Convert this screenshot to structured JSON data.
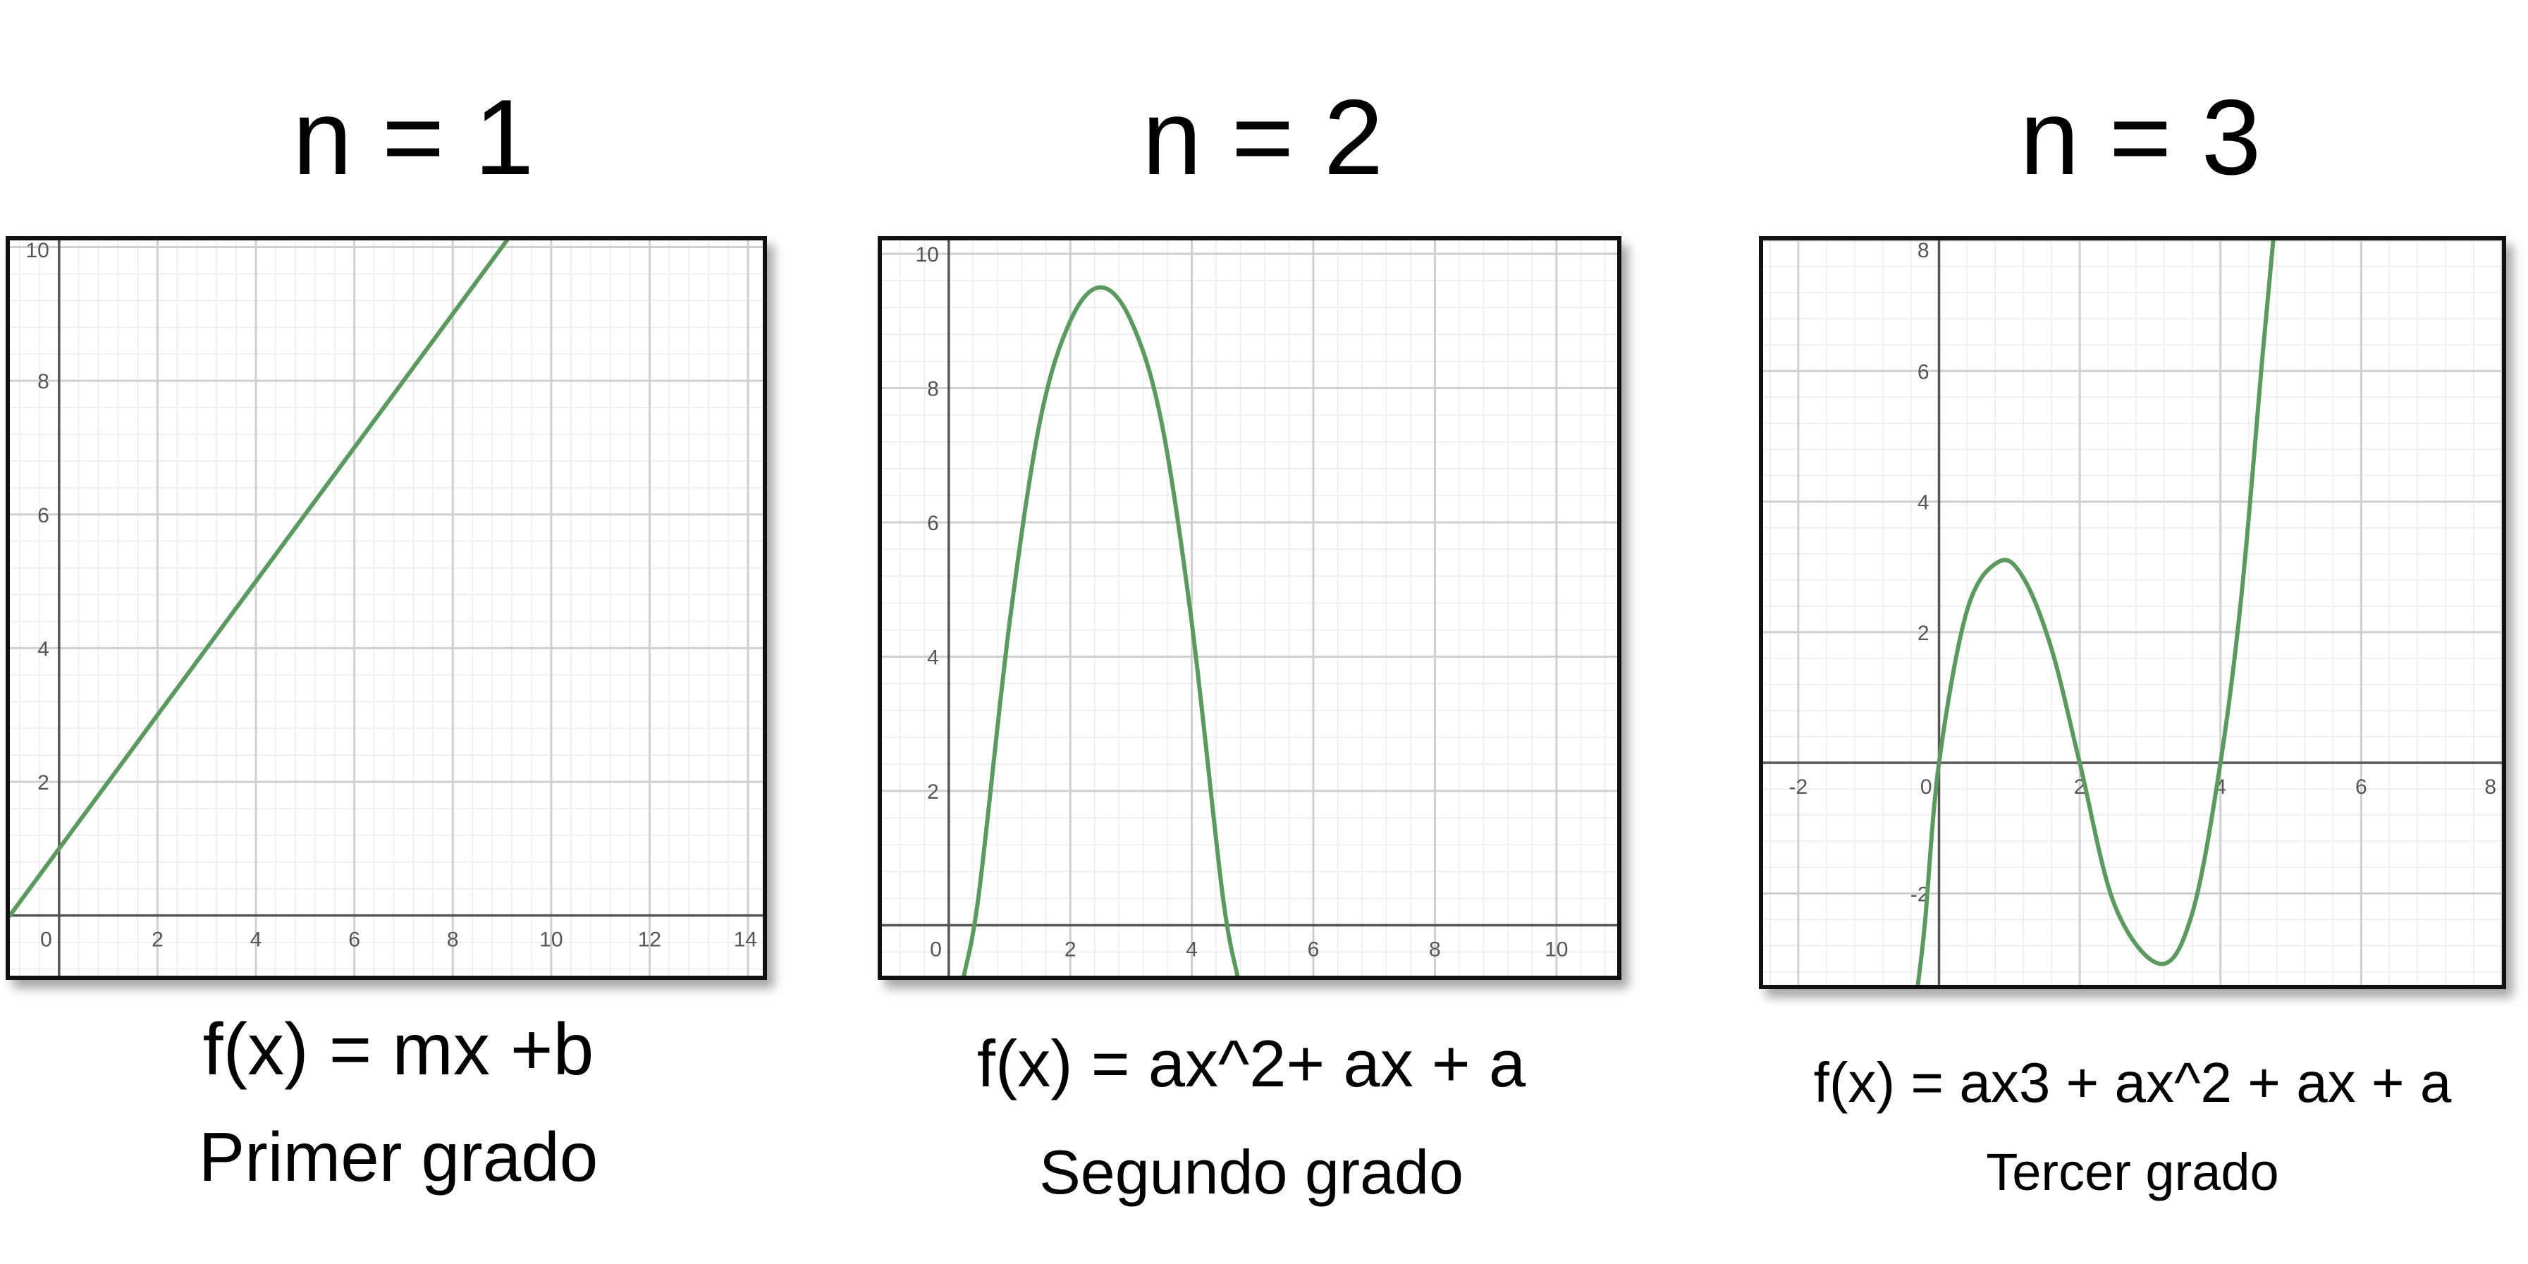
{
  "panels": [
    {
      "title": "n = 1",
      "formula": "f(x) = mx +b",
      "caption": "Primer grado"
    },
    {
      "title": "n = 2",
      "formula": "f(x) = ax^2+ ax + a",
      "caption": "Segundo grado"
    },
    {
      "title": "n = 3",
      "formula": "f(x) = ax3 + ax^2 + ax + a",
      "caption": "Tercer grado"
    }
  ],
  "colors": {
    "curve": "#5a9a5e",
    "axis": "#555555",
    "major_grid": "#cfcfcf",
    "minor_grid": "#ececec",
    "tick_label": "#555555"
  },
  "chart_data": [
    {
      "type": "line",
      "xlim": [
        -1,
        14.3
      ],
      "ylim": [
        -0.9,
        10.1
      ],
      "x_ticks": [
        "0",
        "2",
        "4",
        "6",
        "8",
        "10",
        "12",
        "14"
      ],
      "y_ticks": [
        "2",
        "4",
        "6",
        "8",
        "10"
      ],
      "grid": true,
      "series": [
        {
          "x": [
            -1,
            9.1
          ],
          "y": [
            0,
            10.1
          ]
        }
      ]
    },
    {
      "type": "line",
      "xlim": [
        -1.1,
        11.0
      ],
      "ylim": [
        -0.75,
        10.2
      ],
      "x_ticks": [
        "0",
        "2",
        "4",
        "6",
        "8",
        "10"
      ],
      "y_ticks": [
        "2",
        "4",
        "6",
        "8",
        "10"
      ],
      "grid": true,
      "series": [
        {
          "x": [
            0.25,
            0.5,
            1.0,
            1.5,
            2.0,
            2.5,
            3.0,
            3.5,
            4.0,
            4.5,
            4.75
          ],
          "y": [
            -0.75,
            0.5,
            4.5,
            7.5,
            9.0,
            9.5,
            9.0,
            7.5,
            4.5,
            0.5,
            -0.75
          ]
        }
      ]
    },
    {
      "type": "line",
      "xlim": [
        -2.5,
        8.0
      ],
      "ylim": [
        -3.4,
        8.0
      ],
      "x_ticks": [
        "-2",
        "0",
        "2",
        "4",
        "6",
        "8"
      ],
      "y_ticks": [
        "-2",
        "2",
        "4",
        "6",
        "8"
      ],
      "grid": true,
      "series": [
        {
          "x": [
            -0.3,
            -0.2,
            0,
            0.4,
            0.85,
            1.2,
            1.6,
            2.0,
            2.5,
            3.15,
            3.6,
            4.0,
            4.3,
            4.6,
            4.75
          ],
          "y": [
            -3.4,
            -2.45,
            0,
            2.34,
            3.08,
            2.83,
            1.74,
            0,
            -2.19,
            -3.08,
            -2.3,
            0,
            2.58,
            6.26,
            8.0
          ]
        }
      ]
    }
  ]
}
